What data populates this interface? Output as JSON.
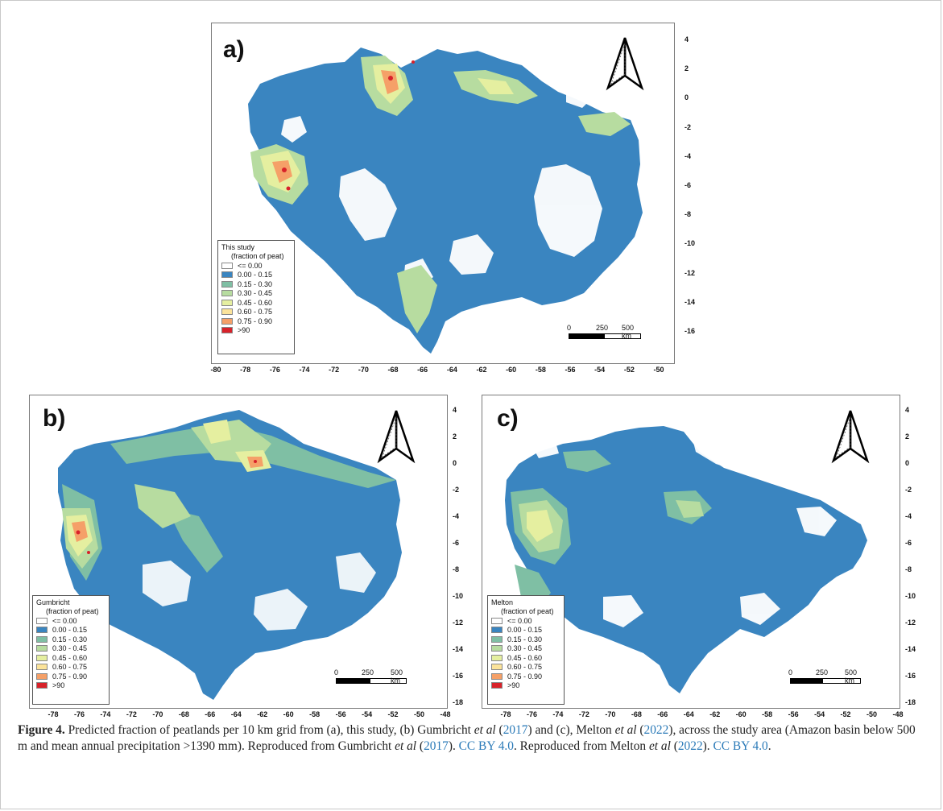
{
  "figure": {
    "panels": [
      {
        "id": "a",
        "label": "a)",
        "legend": {
          "title": "This study",
          "subtitle": "(fraction of peat)",
          "items": [
            {
              "label": "<= 0.00",
              "color": "#ffffff"
            },
            {
              "label": "0.00 - 0.15",
              "color": "#3a85c0"
            },
            {
              "label": "0.15 - 0.30",
              "color": "#7fbfa4"
            },
            {
              "label": "0.30 - 0.45",
              "color": "#b7dca0"
            },
            {
              "label": "0.45 - 0.60",
              "color": "#e5efa0"
            },
            {
              "label": "0.60 - 0.75",
              "color": "#fbe39a"
            },
            {
              "label": "0.75 - 0.90",
              "color": "#f5a068"
            },
            {
              "label": ">90",
              "color": "#d8222a"
            }
          ]
        },
        "scalebar": {
          "labels": [
            "0",
            "250",
            "500 km"
          ]
        },
        "y_ticks": [
          "4",
          "2",
          "0",
          "-2",
          "-4",
          "-6",
          "-8",
          "-10",
          "-12",
          "-14",
          "-16"
        ],
        "x_ticks": [
          "-80",
          "-78",
          "-76",
          "-74",
          "-72",
          "-70",
          "-68",
          "-66",
          "-64",
          "-62",
          "-60",
          "-58",
          "-56",
          "-54",
          "-52",
          "-50"
        ]
      },
      {
        "id": "b",
        "label": "b)",
        "legend": {
          "title": "Gumbricht",
          "subtitle": "(fraction of peat)",
          "items": [
            {
              "label": "<= 0.00",
              "color": "#ffffff"
            },
            {
              "label": "0.00 - 0.15",
              "color": "#3a85c0"
            },
            {
              "label": "0.15 - 0.30",
              "color": "#7fbfa4"
            },
            {
              "label": "0.30 - 0.45",
              "color": "#b7dca0"
            },
            {
              "label": "0.45 - 0.60",
              "color": "#e5efa0"
            },
            {
              "label": "0.60 - 0.75",
              "color": "#fbe39a"
            },
            {
              "label": "0.75 - 0.90",
              "color": "#f5a068"
            },
            {
              "label": ">90",
              "color": "#d8222a"
            }
          ]
        },
        "scalebar": {
          "labels": [
            "0",
            "250",
            "500 km"
          ]
        },
        "y_ticks": [
          "4",
          "2",
          "0",
          "-2",
          "-4",
          "-6",
          "-8",
          "-10",
          "-12",
          "-14",
          "-16",
          "-18"
        ],
        "x_ticks": [
          "-78",
          "-76",
          "-74",
          "-72",
          "-70",
          "-68",
          "-66",
          "-64",
          "-62",
          "-60",
          "-58",
          "-56",
          "-54",
          "-52",
          "-50",
          "-48"
        ]
      },
      {
        "id": "c",
        "label": "c)",
        "legend": {
          "title": "Melton",
          "subtitle": "(fraction of peat)",
          "items": [
            {
              "label": "<= 0.00",
              "color": "#ffffff"
            },
            {
              "label": "0.00 - 0.15",
              "color": "#3a85c0"
            },
            {
              "label": "0.15 - 0.30",
              "color": "#7fbfa4"
            },
            {
              "label": "0.30 - 0.45",
              "color": "#b7dca0"
            },
            {
              "label": "0.45 - 0.60",
              "color": "#e5efa0"
            },
            {
              "label": "0.60 - 0.75",
              "color": "#fbe39a"
            },
            {
              "label": "0.75 - 0.90",
              "color": "#f5a068"
            },
            {
              "label": ">90",
              "color": "#d8222a"
            }
          ]
        },
        "scalebar": {
          "labels": [
            "0",
            "250",
            "500 km"
          ]
        },
        "y_ticks": [
          "4",
          "2",
          "0",
          "-2",
          "-4",
          "-6",
          "-8",
          "-10",
          "-12",
          "-14",
          "-16",
          "-18"
        ],
        "x_ticks": [
          "-78",
          "-76",
          "-74",
          "-72",
          "-70",
          "-68",
          "-66",
          "-64",
          "-62",
          "-60",
          "-58",
          "-56",
          "-54",
          "-52",
          "-50",
          "-48"
        ]
      }
    ]
  },
  "caption": {
    "label": "Figure 4.",
    "t1": " Predicted fraction of peatlands per 10 km grid from (a), this study, (b) Gumbricht ",
    "etal1": "et al",
    "t2": " (",
    "c1": "2017",
    "t3": ") and (c), Melton ",
    "etal2": "et al",
    "t4": " (",
    "c2": "2022",
    "t5": "), across the study area (Amazon basin below 500 m and mean annual precipitation >1390 mm). Reproduced from Gumbricht ",
    "etal3": "et al",
    "t6": " (",
    "c3": "2017",
    "t7": "). ",
    "lic1": "CC BY 4.0",
    "t8": ". Reproduced from Melton ",
    "etal4": "et al",
    "t9": " (",
    "c4": "2022",
    "t10": "). ",
    "lic2": "CC BY 4.0",
    "t11": "."
  }
}
